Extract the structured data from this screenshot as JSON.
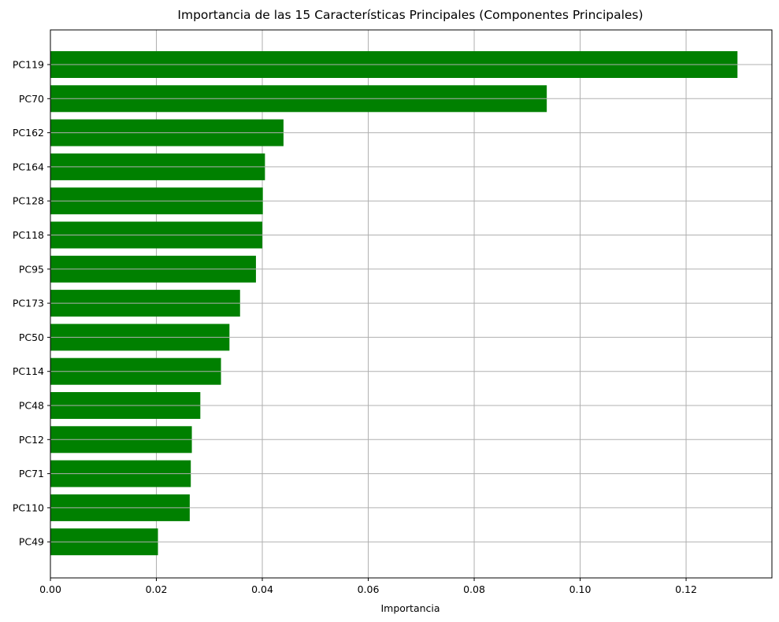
{
  "chart_data": {
    "type": "bar",
    "orientation": "horizontal",
    "title": "Importancia de las 15 Características Principales (Componentes Principales)",
    "xlabel": "Importancia",
    "ylabel": "",
    "categories": [
      "PC119",
      "PC70",
      "PC162",
      "PC164",
      "PC128",
      "PC118",
      "PC95",
      "PC173",
      "PC50",
      "PC114",
      "PC48",
      "PC12",
      "PC71",
      "PC110",
      "PC49"
    ],
    "values": [
      0.1297,
      0.0937,
      0.044,
      0.0405,
      0.0401,
      0.04,
      0.0388,
      0.0358,
      0.0338,
      0.0322,
      0.0283,
      0.0267,
      0.0265,
      0.0263,
      0.0203
    ],
    "xlim": [
      0,
      0.1362
    ],
    "xticks": [
      0.0,
      0.02,
      0.04,
      0.06,
      0.08,
      0.1,
      0.12
    ],
    "xtick_labels": [
      "0.00",
      "0.02",
      "0.04",
      "0.06",
      "0.08",
      "0.10",
      "0.12"
    ],
    "grid": true,
    "bar_color": "#008000",
    "legend": "none"
  }
}
